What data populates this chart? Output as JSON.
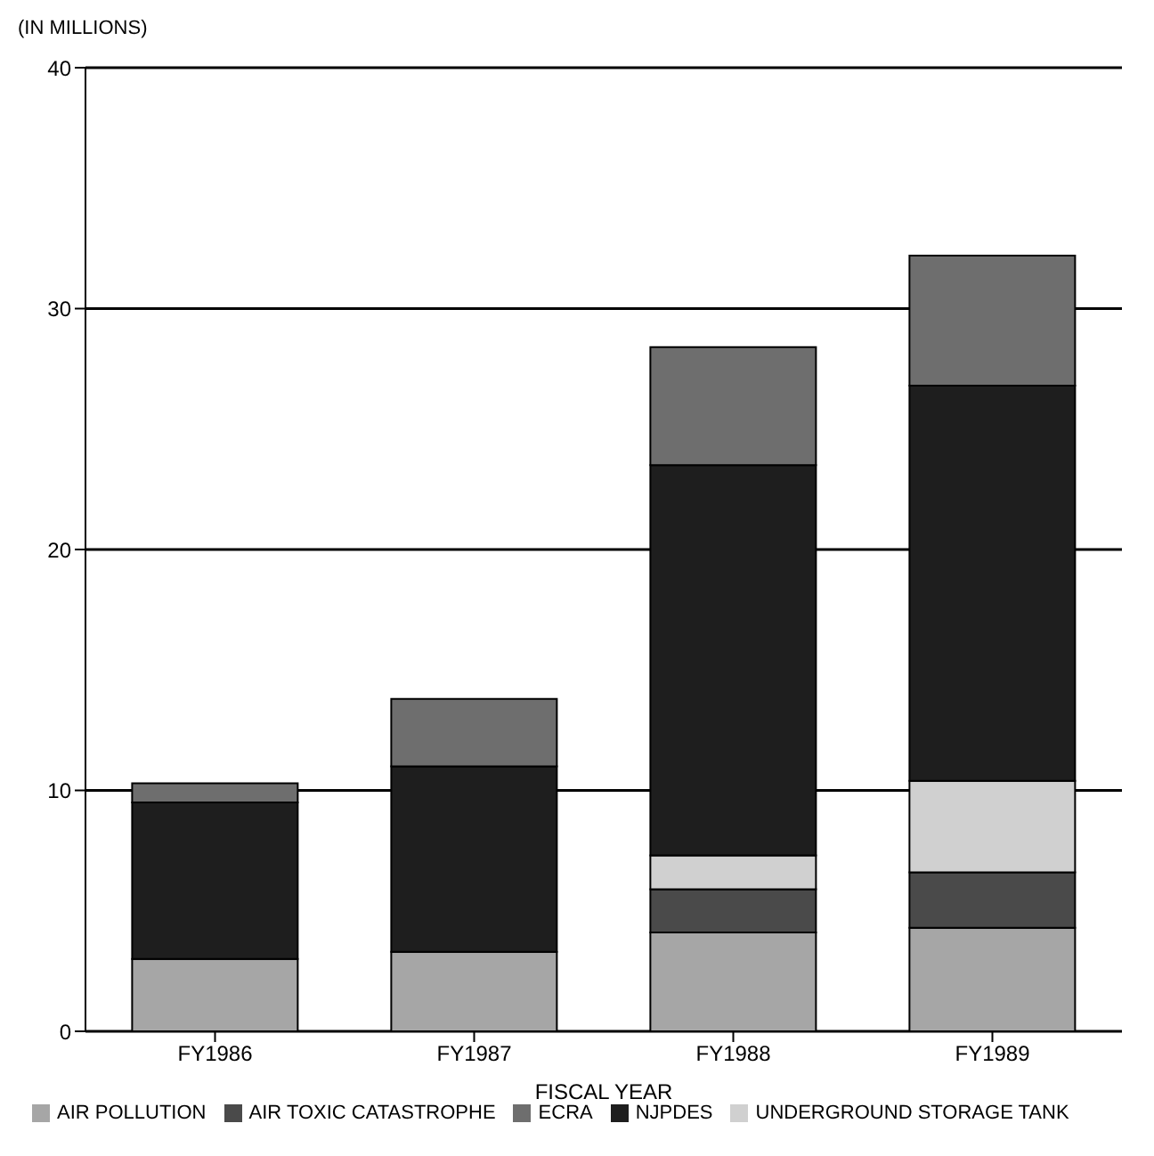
{
  "chart_data": {
    "type": "bar",
    "stacked": true,
    "ylabel": "(IN MILLIONS)",
    "xlabel": "FISCAL YEAR",
    "categories": [
      "FY1986",
      "FY1987",
      "FY1988",
      "FY1989"
    ],
    "series": [
      {
        "name": "AIR POLLUTION",
        "color": "#a6a6a6",
        "values": [
          3.0,
          3.3,
          4.1,
          4.3
        ]
      },
      {
        "name": "AIR TOXIC CATASTROPHE",
        "color": "#4a4a4a",
        "values": [
          0,
          0,
          1.8,
          2.3
        ]
      },
      {
        "name": "UNDERGROUND STORAGE TANK",
        "color": "#d0d0d0",
        "values": [
          0,
          0,
          1.4,
          3.8
        ]
      },
      {
        "name": "NJPDES",
        "color": "#1e1e1e",
        "values": [
          6.5,
          7.7,
          16.2,
          16.4
        ]
      },
      {
        "name": "ECRA",
        "color": "#6e6e6e",
        "values": [
          0.8,
          2.8,
          4.9,
          5.4
        ]
      }
    ],
    "ylim": [
      0,
      40
    ],
    "yticks": [
      0,
      10,
      20,
      30,
      40
    ],
    "grid": "y",
    "legend": "bottom"
  }
}
